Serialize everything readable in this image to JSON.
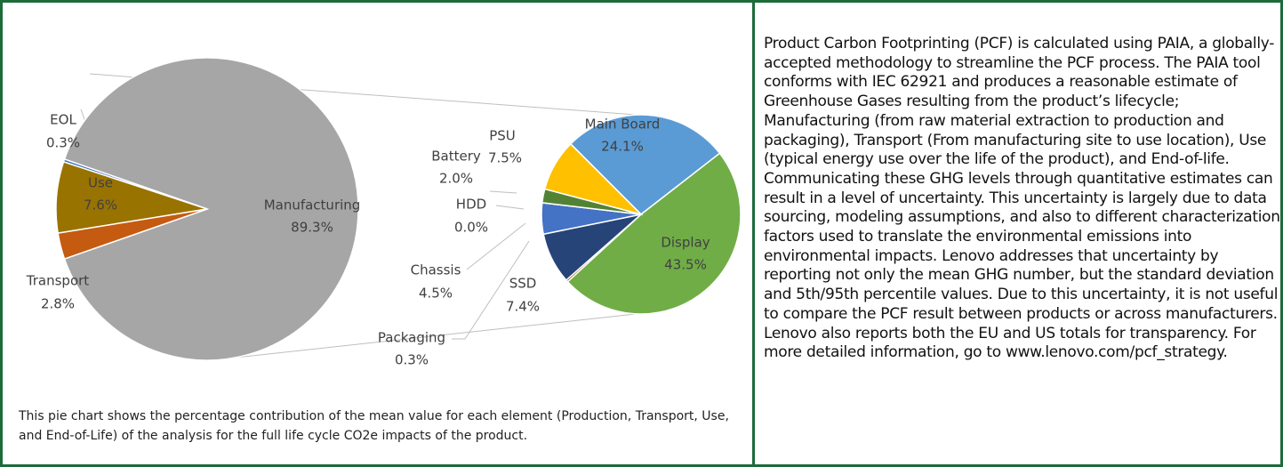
{
  "chart_data": [
    {
      "type": "pie",
      "categories": [
        "Manufacturing",
        "EOL",
        "Use",
        "Transport"
      ],
      "values": [
        89.3,
        0.3,
        7.6,
        2.8
      ],
      "value_labels": [
        "89.3%",
        "0.3%",
        "7.6%",
        "2.8%"
      ],
      "colors": [
        "#a6a6a6",
        "#4472c4",
        "#997300",
        "#c55a11"
      ]
    },
    {
      "type": "pie",
      "categories": [
        "Main Board",
        "Display",
        "Packaging",
        "SSD",
        "Chassis",
        "HDD",
        "Battery",
        "PSU"
      ],
      "values": [
        24.1,
        43.5,
        0.3,
        7.4,
        4.5,
        0.0,
        2.0,
        7.5
      ],
      "value_labels": [
        "24.1%",
        "43.5%",
        "0.3%",
        "7.4%",
        "4.5%",
        "0.0%",
        "2.0%",
        "7.5%"
      ],
      "colors": [
        "#5b9bd5",
        "#70ad47",
        "#9e480e",
        "#264478",
        "#4472c4",
        "#a5a5a5",
        "#548235",
        "#ffc000"
      ]
    }
  ],
  "caption": "This pie chart shows the percentage contribution of the mean value for each element (Production, Transport, Use, and End-of-Life) of the analysis for the full life cycle CO2e impacts of the product.",
  "description": "Product Carbon Footprinting (PCF) is calculated using PAIA, a globally-accepted methodology to streamline the PCF process. The PAIA tool conforms with IEC 62921 and produces a reasonable estimate of Greenhouse Gases resulting from the product’s lifecycle; Manufacturing (from raw material extraction to production and packaging), Transport (From manufacturing site to use location), Use (typical energy use over the life of the product), and End-of-life. Communicating these GHG levels through quantitative estimates can result in a level of uncertainty. This uncertainty is largely due to data sourcing, modeling assumptions, and also to different characterization factors used to translate the environmental emissions into environmental impacts. Lenovo addresses that uncertainty by reporting not only the mean GHG number, but the standard deviation and 5th/95th percentile values. Due to this uncertainty, it is not useful to compare the PCF result between products or across manufacturers. Lenovo also reports both the EU and US totals for transparency. For more detailed information, go to www.lenovo.com/pcf_strategy."
}
